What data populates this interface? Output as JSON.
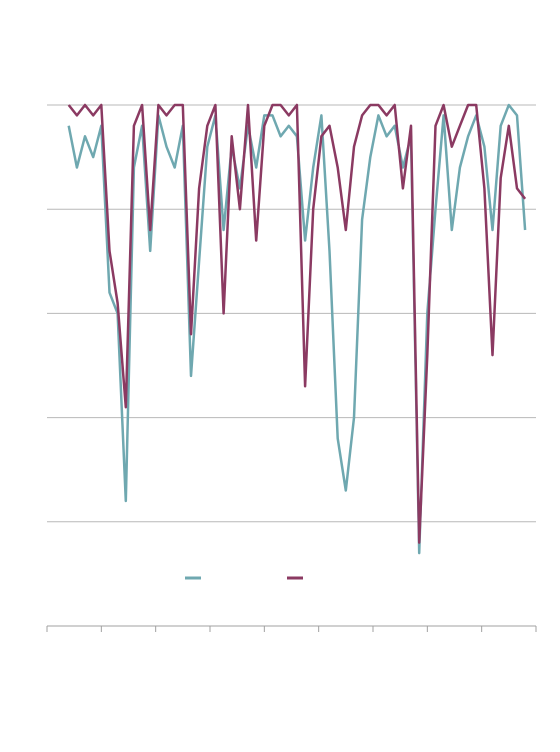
{
  "chart_data": {
    "type": "line",
    "x": [
      0.4,
      0.55,
      0.7,
      0.85,
      1.0,
      1.15,
      1.3,
      1.45,
      1.6,
      1.75,
      1.9,
      2.05,
      2.2,
      2.35,
      2.5,
      2.65,
      2.8,
      2.95,
      3.1,
      3.25,
      3.4,
      3.55,
      3.7,
      3.85,
      4.0,
      4.15,
      4.3,
      4.45,
      4.6,
      4.75,
      4.9,
      5.05,
      5.2,
      5.35,
      5.5,
      5.65,
      5.8,
      5.95,
      6.1,
      6.25,
      6.4,
      6.55,
      6.7,
      6.85,
      7.0,
      7.15,
      7.3,
      7.45,
      7.6,
      7.75,
      7.9,
      8.05,
      8.2,
      8.35,
      8.5,
      8.65,
      8.8
    ],
    "series": [
      {
        "color": "#6fa8b0",
        "values": [
          -0.2,
          -0.6,
          -0.3,
          -0.5,
          -0.2,
          -1.8,
          -2.0,
          -3.8,
          -0.6,
          -0.2,
          -1.4,
          -0.1,
          -0.4,
          -0.6,
          -0.2,
          -2.6,
          -1.5,
          -0.4,
          -0.1,
          -1.2,
          -0.4,
          -0.8,
          -0.2,
          -0.6,
          -0.1,
          -0.1,
          -0.3,
          -0.2,
          -0.3,
          -1.3,
          -0.6,
          -0.1,
          -1.4,
          -3.2,
          -3.7,
          -3.0,
          -1.1,
          -0.5,
          -0.1,
          -0.3,
          -0.2,
          -0.6,
          -0.3,
          -4.3,
          -2.0,
          -1.0,
          -0.1,
          -1.2,
          -0.6,
          -0.3,
          -0.1,
          -0.4,
          -1.2,
          -0.2,
          0,
          -0.1,
          -1.2
        ]
      },
      {
        "color": "#8b3a62",
        "values": [
          0,
          -0.1,
          0,
          -0.1,
          0,
          -1.4,
          -1.9,
          -2.9,
          -0.2,
          0,
          -1.2,
          0,
          -0.1,
          0,
          0,
          -2.2,
          -0.8,
          -0.2,
          0,
          -2.0,
          -0.3,
          -1.0,
          0,
          -1.3,
          -0.2,
          0,
          0,
          -0.1,
          0,
          -2.7,
          -1.0,
          -0.3,
          -0.2,
          -0.6,
          -1.2,
          -0.4,
          -0.1,
          0,
          0,
          -0.1,
          0,
          -0.8,
          -0.2,
          -4.2,
          -2.4,
          -0.2,
          0,
          -0.4,
          -0.2,
          0,
          0,
          -0.8,
          -2.4,
          -0.7,
          -0.2,
          -0.8,
          -0.9
        ]
      }
    ],
    "xlim": [
      0,
      9
    ],
    "xticks": [
      0,
      1,
      2,
      3,
      4,
      5,
      6,
      7,
      8,
      9
    ],
    "ylim": [
      -5,
      0
    ],
    "yticks": [
      0,
      -1,
      -2,
      -3,
      -4
    ],
    "grid": true
  }
}
